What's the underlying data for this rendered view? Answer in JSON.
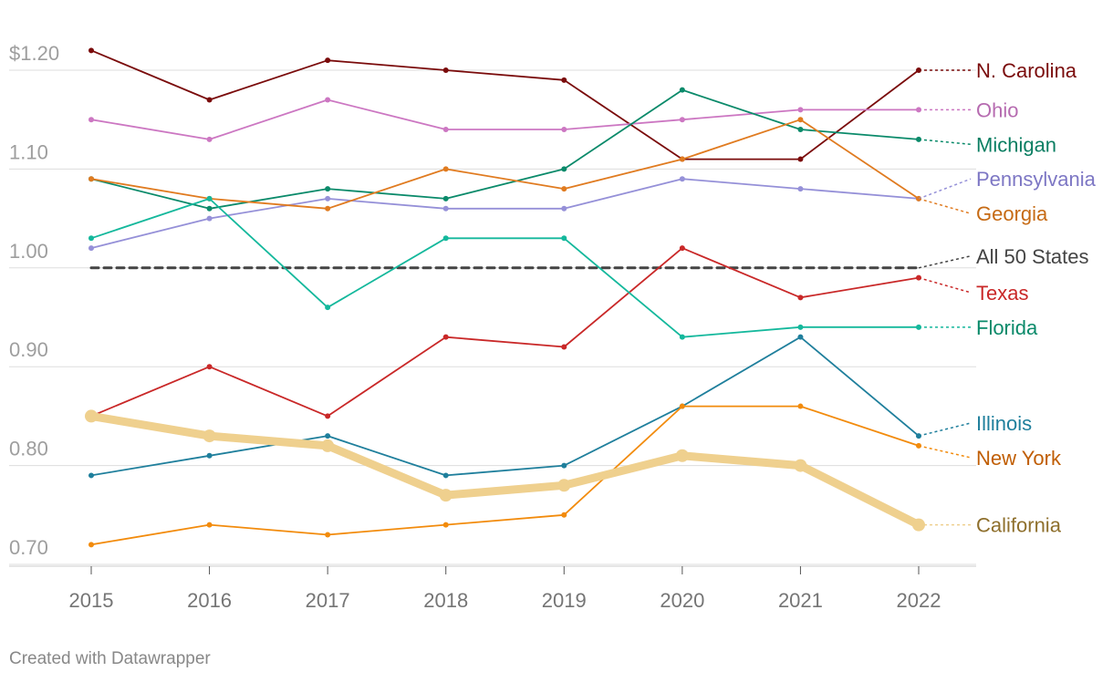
{
  "chart_data": {
    "type": "line",
    "title": "",
    "xlabel": "",
    "ylabel": "",
    "x": [
      2015,
      2016,
      2017,
      2018,
      2019,
      2020,
      2021,
      2022
    ],
    "x_tick_labels": [
      "2015",
      "2016",
      "2017",
      "2018",
      "2019",
      "2020",
      "2021",
      "2022"
    ],
    "ylim": [
      0.7,
      1.2
    ],
    "y_ticks": [
      0.7,
      0.8,
      0.9,
      1.0,
      1.1,
      1.2
    ],
    "y_tick_labels": [
      "0.70",
      "0.80",
      "0.90",
      "1.00",
      "1.10",
      "$1.20"
    ],
    "grid": true,
    "series": [
      {
        "name": "N. Carolina",
        "color": "#7a0b0b",
        "values": [
          1.22,
          1.17,
          1.21,
          1.2,
          1.19,
          1.11,
          1.11,
          1.2
        ]
      },
      {
        "name": "Ohio",
        "color": "#cc77c2",
        "values": [
          1.15,
          1.13,
          1.17,
          1.14,
          1.14,
          1.15,
          1.16,
          1.16
        ]
      },
      {
        "name": "Michigan",
        "color": "#0a8a6a",
        "values": [
          1.09,
          1.06,
          1.08,
          1.07,
          1.1,
          1.18,
          1.14,
          1.13
        ]
      },
      {
        "name": "Pennsylvania",
        "color": "#9590d8",
        "values": [
          1.02,
          1.05,
          1.07,
          1.06,
          1.06,
          1.09,
          1.08,
          1.07
        ]
      },
      {
        "name": "Georgia",
        "color": "#e07b20",
        "values": [
          1.09,
          1.07,
          1.06,
          1.1,
          1.08,
          1.11,
          1.15,
          1.07
        ]
      },
      {
        "name": "All 50 States",
        "color": "#444444",
        "values": [
          1.0,
          1.0,
          1.0,
          1.0,
          1.0,
          1.0,
          1.0,
          1.0
        ]
      },
      {
        "name": "Texas",
        "color": "#c92828",
        "values": [
          0.85,
          0.9,
          0.85,
          0.93,
          0.92,
          1.02,
          0.97,
          0.99
        ]
      },
      {
        "name": "Florida",
        "color": "#14b89c",
        "values": [
          1.03,
          1.07,
          0.96,
          1.03,
          1.03,
          0.93,
          0.94,
          0.94
        ]
      },
      {
        "name": "Illinois",
        "color": "#1f7f9c",
        "values": [
          0.79,
          0.81,
          0.83,
          0.79,
          0.8,
          0.86,
          0.93,
          0.83
        ]
      },
      {
        "name": "New York",
        "color": "#f28b0c",
        "values": [
          0.72,
          0.74,
          0.73,
          0.74,
          0.75,
          0.86,
          0.86,
          0.82
        ]
      },
      {
        "name": "California",
        "color": "#efd08e",
        "values": [
          0.85,
          0.83,
          0.82,
          0.77,
          0.78,
          0.81,
          0.8,
          0.74
        ]
      }
    ],
    "labels": [
      {
        "series": "N. Carolina",
        "color": "#7a0b0b",
        "label_value": 1.2
      },
      {
        "series": "Ohio",
        "color": "#b66bb0",
        "label_value": 1.16
      },
      {
        "series": "Michigan",
        "color": "#0a7e62",
        "label_value": 1.125
      },
      {
        "series": "Pennsylvania",
        "color": "#7d77c4",
        "label_value": 1.09
      },
      {
        "series": "Georgia",
        "color": "#c66a14",
        "label_value": 1.055
      },
      {
        "series": "All 50 States",
        "color": "#444444",
        "label_value": 1.012
      },
      {
        "series": "Texas",
        "color": "#c92828",
        "label_value": 0.975
      },
      {
        "series": "Florida",
        "color": "#0a8a6a",
        "label_value": 0.94
      },
      {
        "series": "Illinois",
        "color": "#1f7f9c",
        "label_value": 0.843
      },
      {
        "series": "New York",
        "color": "#c05e05",
        "label_value": 0.808
      },
      {
        "series": "California",
        "color": "#8e6f2c",
        "label_value": 0.74
      }
    ]
  },
  "footer": "Created with Datawrapper"
}
